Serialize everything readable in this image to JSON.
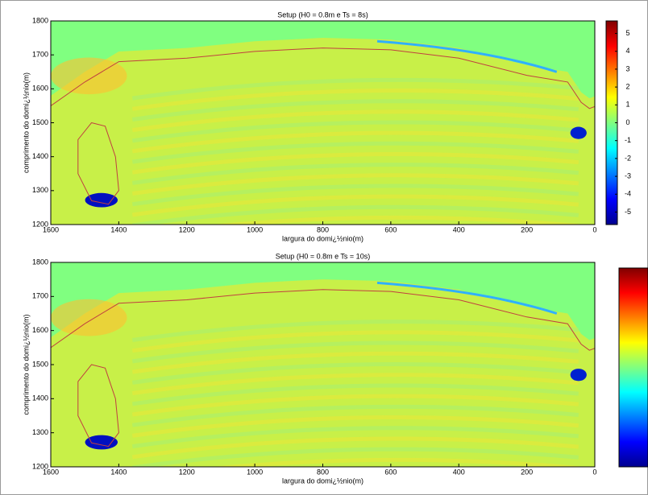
{
  "chart_data": [
    {
      "type": "heatmap",
      "title": "Setup (H0 = 0.8m e Ts = 8s)",
      "xlabel": "largura do domi¿½nio(m)",
      "ylabel": "comprimento do domi¿½nio(m)",
      "xlim": [
        1600,
        0
      ],
      "xticks": [
        1600,
        1400,
        1200,
        1000,
        800,
        600,
        400,
        200,
        0
      ],
      "ylim": [
        1200,
        1800
      ],
      "yticks": [
        1200,
        1300,
        1400,
        1500,
        1600,
        1700,
        1800
      ],
      "colormap": "jet",
      "clim": [
        -5.7,
        5.7
      ],
      "cticks": [
        5,
        4,
        3,
        2,
        1,
        0,
        -1,
        -2,
        -3,
        -4,
        -5
      ]
    },
    {
      "type": "heatmap",
      "title": "Setup (H0 = 0.8m e Ts = 10s)",
      "xlabel": "largura do domi¿½nio(m)",
      "ylabel": "comprimento do domi¿½nio(m)",
      "xlim": [
        1600,
        0
      ],
      "xticks": [
        1600,
        1400,
        1200,
        1000,
        800,
        600,
        400,
        200,
        0
      ],
      "ylim": [
        1200,
        1800
      ],
      "yticks": [
        1200,
        1300,
        1400,
        1500,
        1600,
        1700,
        1800
      ],
      "colormap": "jet"
    }
  ]
}
